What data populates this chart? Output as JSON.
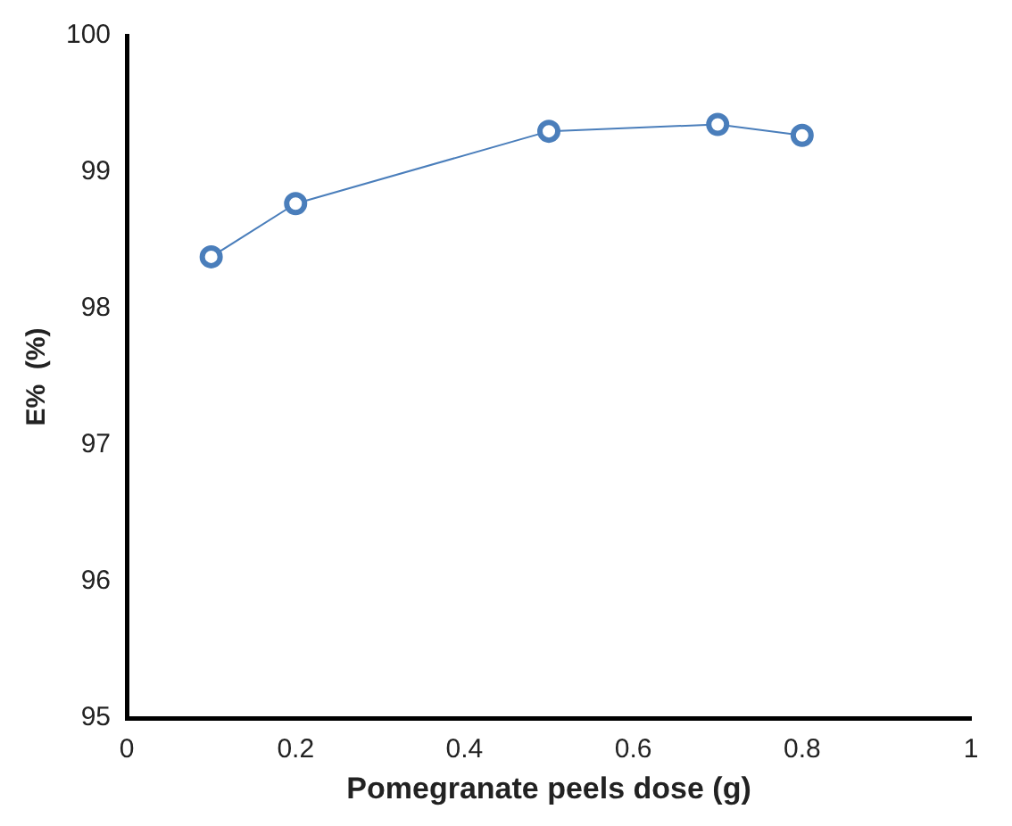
{
  "chart_data": {
    "type": "line",
    "xlabel": "Pomegranate peels dose (g)",
    "ylabel": "E%  (%)",
    "x": [
      0.1,
      0.2,
      0.5,
      0.7,
      0.8
    ],
    "series": [
      {
        "color": "#4a7ebb",
        "values": [
          98.38,
          98.77,
          99.3,
          99.35,
          99.27
        ]
      }
    ],
    "xlim": [
      0,
      1
    ],
    "xticks": [
      0,
      0.2,
      0.4,
      0.6,
      0.8,
      1
    ],
    "ylim": [
      95,
      100
    ],
    "yticks": [
      95,
      96,
      97,
      98,
      99,
      100
    ],
    "grid": false,
    "legend": false,
    "marker": "circle",
    "line_style": "solid"
  }
}
